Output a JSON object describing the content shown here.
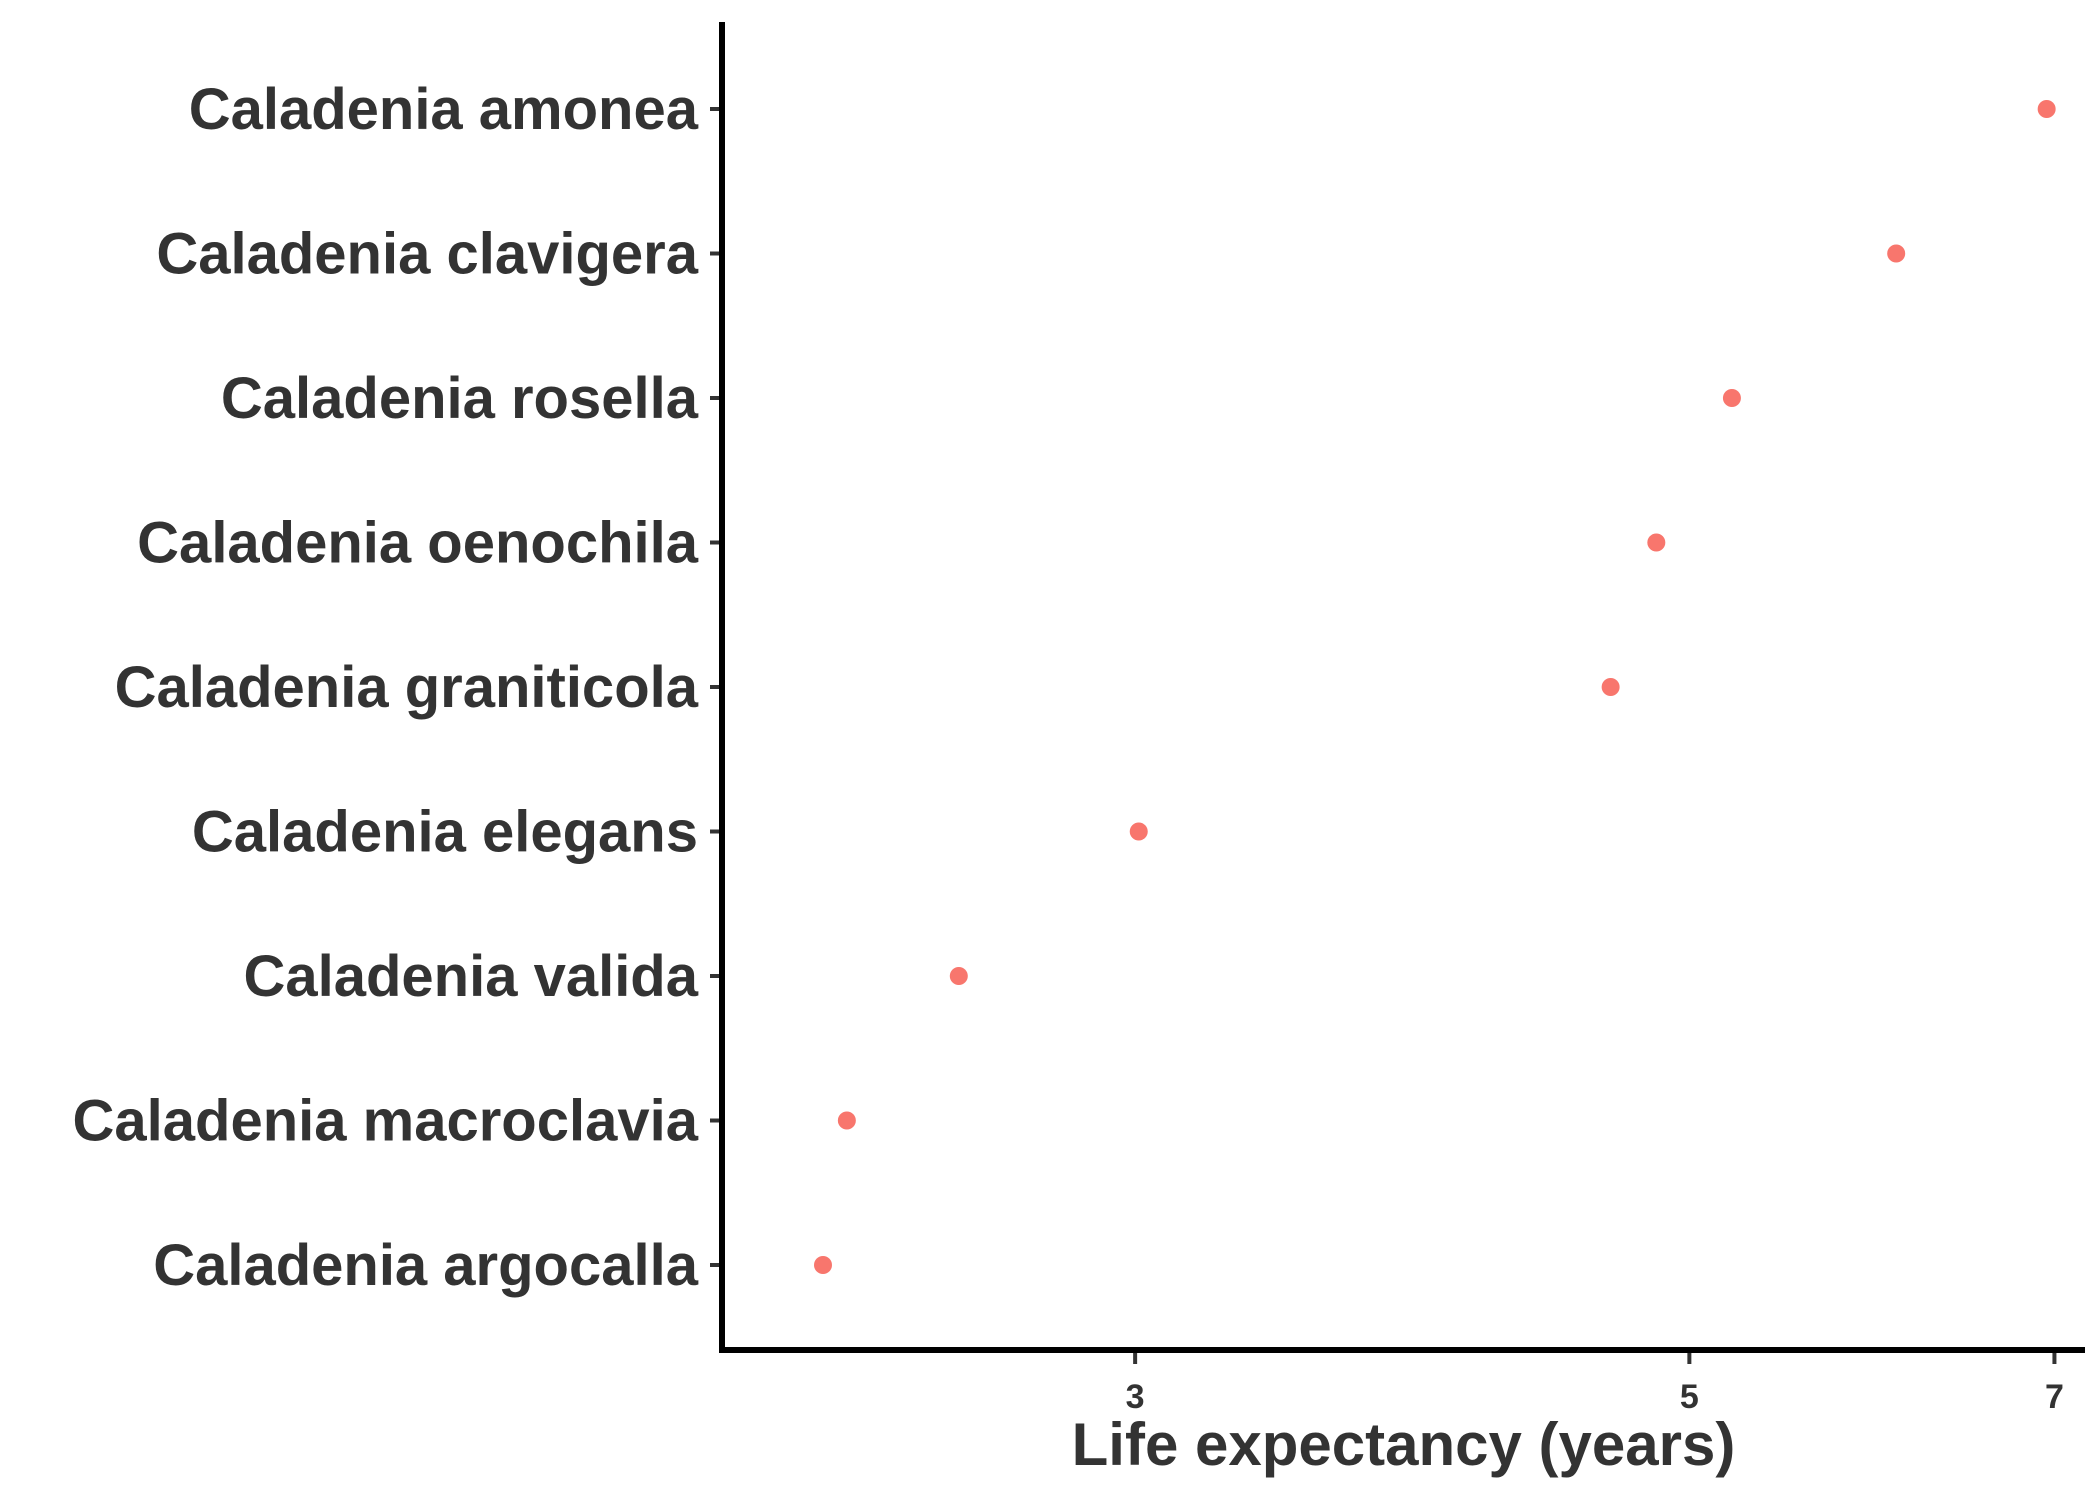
{
  "chart_data": {
    "type": "scatter",
    "title": "",
    "xlabel": "Life expectancy (years)",
    "ylabel": "",
    "x_scale": "log",
    "x_ticks": [
      3,
      5,
      7
    ],
    "x_tick_labels": [
      "3",
      "5",
      "7"
    ],
    "xlim": [
      2.05,
      7.2
    ],
    "grid": false,
    "legend": "none",
    "point_color": "#F8766D",
    "categories": [
      "Caladenia amonea",
      "Caladenia clavigera",
      "Caladenia rosella",
      "Caladenia oenochila",
      "Caladenia graniticola",
      "Caladenia elegans",
      "Caladenia valida",
      "Caladenia macroclavia",
      "Caladenia argocalla"
    ],
    "values": [
      6.95,
      6.05,
      5.2,
      4.85,
      4.65,
      3.01,
      2.55,
      2.3,
      2.25
    ]
  }
}
